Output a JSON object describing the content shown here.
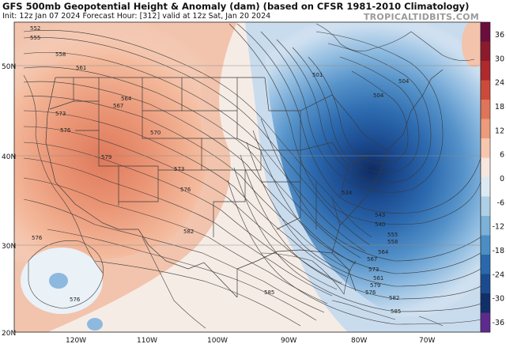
{
  "title": "GFS 500mb Geopotential Height & Anomaly (dam) (based on CFSR 1981-2010 Climatology)",
  "subtitle": "Init: 12z Jan 07 2024   Forecast Hour: [312]   valid at 12z Sat, Jan 20 2024",
  "watermark": "TROPICALTIDBITS.COM",
  "map": {
    "lat_labels": [
      "50N",
      "40N",
      "30N",
      "20N"
    ],
    "lon_labels": [
      "120W",
      "110W",
      "100W",
      "90W",
      "80W",
      "70W"
    ]
  },
  "colorbar": {
    "ticks": [
      "36",
      "30",
      "24",
      "18",
      "12",
      "6",
      "0",
      "-6",
      "-12",
      "-18",
      "-24",
      "-30",
      "-36"
    ],
    "colors": [
      "#6a0e3e",
      "#8c1a2c",
      "#b0292c",
      "#cc4a3a",
      "#df7558",
      "#ec9b7c",
      "#f6c6ad",
      "#f6e6de",
      "#dde9f2",
      "#aecfe6",
      "#7cb1d8",
      "#4b8ec6",
      "#2a68ad",
      "#1b4a8f",
      "#112f69",
      "#5e2a8c"
    ]
  },
  "contour_labels": [
    {
      "text": "552",
      "ref": "a"
    },
    {
      "text": "555",
      "ref": "b"
    },
    {
      "text": "558",
      "ref": "c"
    },
    {
      "text": "561",
      "ref": "d"
    },
    {
      "text": "564",
      "ref": "e"
    },
    {
      "text": "567",
      "ref": "f"
    },
    {
      "text": "570",
      "ref": "g"
    },
    {
      "text": "573",
      "ref": "h"
    },
    {
      "text": "576",
      "ref": "i"
    },
    {
      "text": "579",
      "ref": "j"
    },
    {
      "text": "573",
      "ref": "k"
    },
    {
      "text": "576",
      "ref": "l"
    },
    {
      "text": "582",
      "ref": "m"
    },
    {
      "text": "576",
      "ref": "n"
    },
    {
      "text": "576",
      "ref": "o"
    },
    {
      "text": "585",
      "ref": "p"
    },
    {
      "text": "501",
      "ref": "q"
    },
    {
      "text": "504",
      "ref": "r"
    },
    {
      "text": "504",
      "ref": "s"
    },
    {
      "text": "534",
      "ref": "t"
    },
    {
      "text": "543",
      "ref": "u"
    },
    {
      "text": "540",
      "ref": "v"
    },
    {
      "text": "555",
      "ref": "w"
    },
    {
      "text": "558",
      "ref": "x"
    },
    {
      "text": "564",
      "ref": "y"
    },
    {
      "text": "567",
      "ref": "z"
    },
    {
      "text": "573",
      "ref": "aa"
    },
    {
      "text": "579",
      "ref": "bb"
    },
    {
      "text": "582",
      "ref": "cc"
    },
    {
      "text": "585",
      "ref": "dd"
    },
    {
      "text": "561",
      "ref": "ee"
    },
    {
      "text": "576",
      "ref": "ff"
    }
  ]
}
